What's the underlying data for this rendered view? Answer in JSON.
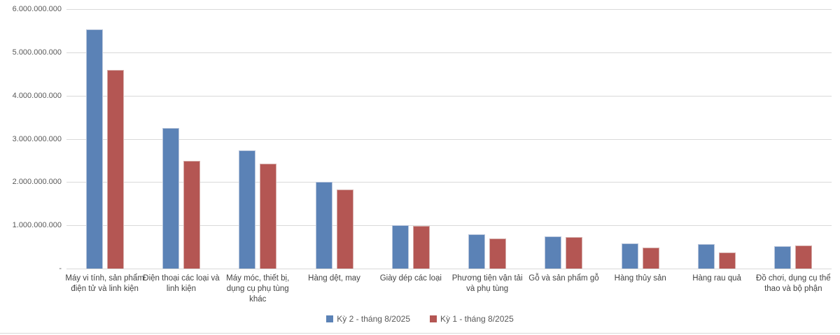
{
  "colors": {
    "series1_fill": "#5b82b6",
    "series1_border": "#b9c6dc",
    "series2_fill": "#b45653",
    "series2_border": "#d6aeab",
    "gridline": "#d9d9d9",
    "axis_text": "#595959",
    "category_text": "#444444"
  },
  "chart_data": {
    "type": "bar",
    "title": "",
    "xlabel": "",
    "ylabel": "",
    "grid": "horizontal",
    "legend_position": "bottom-center",
    "ylim": [
      0,
      6000000000
    ],
    "y_ticks": [
      6000000000,
      5000000000,
      4000000000,
      3000000000,
      2000000000,
      1000000000,
      0
    ],
    "y_tick_labels": [
      "6.000.000.000",
      "5.000.000.000",
      "4.000.000.000",
      "3.000.000.000",
      "2.000.000.000",
      "1.000.000.000",
      "-"
    ],
    "categories": [
      "Máy vi tính, sản phẩm điện tử và linh kiện",
      "Điện thoại các loại và linh kiện",
      "Máy móc, thiết bị, dụng cụ phụ tùng khác",
      "Hàng dệt, may",
      "Giày dép các loại",
      "Phương tiện vận tải và phụ tùng",
      "Gỗ và sản phẩm gỗ",
      "Hàng thủy sản",
      "Hàng rau quả",
      "Đồ chơi, dụng cụ thể thao và bộ phận"
    ],
    "series": [
      {
        "name": "Kỳ 2 - tháng 8/2025",
        "color_key": "series1",
        "values": [
          5530000000,
          3250000000,
          2740000000,
          2010000000,
          1010000000,
          790000000,
          740000000,
          590000000,
          560000000,
          520000000
        ]
      },
      {
        "name": "Kỳ 1 - tháng 8/2025",
        "color_key": "series2",
        "values": [
          4600000000,
          2490000000,
          2430000000,
          1830000000,
          980000000,
          700000000,
          720000000,
          480000000,
          380000000,
          530000000
        ]
      }
    ]
  }
}
